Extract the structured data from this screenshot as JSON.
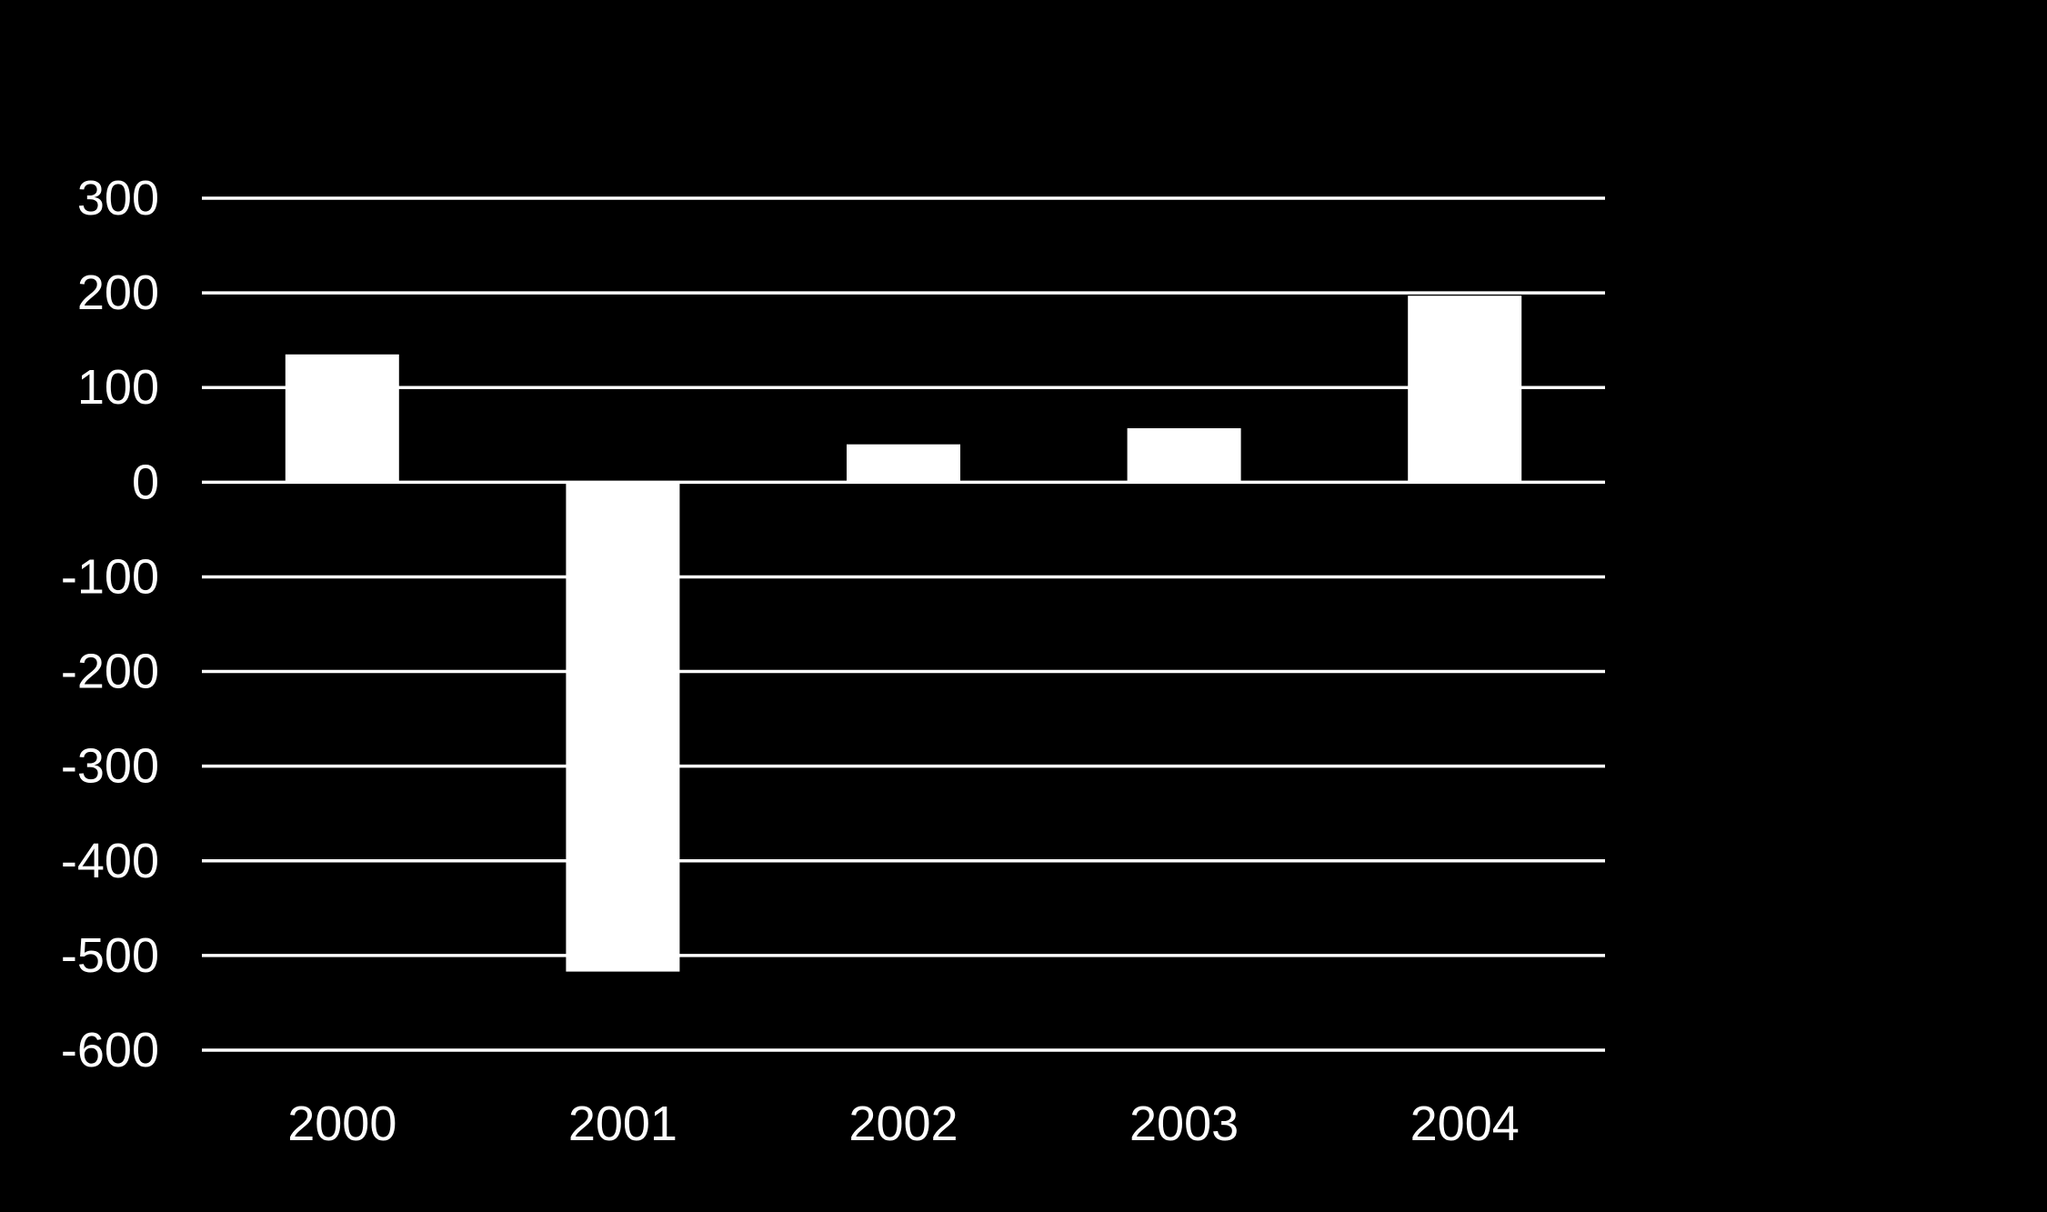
{
  "chart_data": {
    "type": "bar",
    "title": "",
    "xlabel": "",
    "ylabel": "",
    "categories": [
      "2000",
      "2001",
      "2002",
      "2003",
      "2004"
    ],
    "values": [
      135,
      -517,
      40,
      57,
      197
    ],
    "ylim": [
      -600,
      300
    ],
    "yticks": [
      300,
      200,
      100,
      0,
      -100,
      -200,
      -300,
      -400,
      -500,
      -600
    ],
    "grid": true,
    "legend": "none",
    "colors": {
      "background": "#000000",
      "bars": "#ffffff",
      "gridlines": "#ffffff",
      "text": "#ffffff"
    }
  }
}
